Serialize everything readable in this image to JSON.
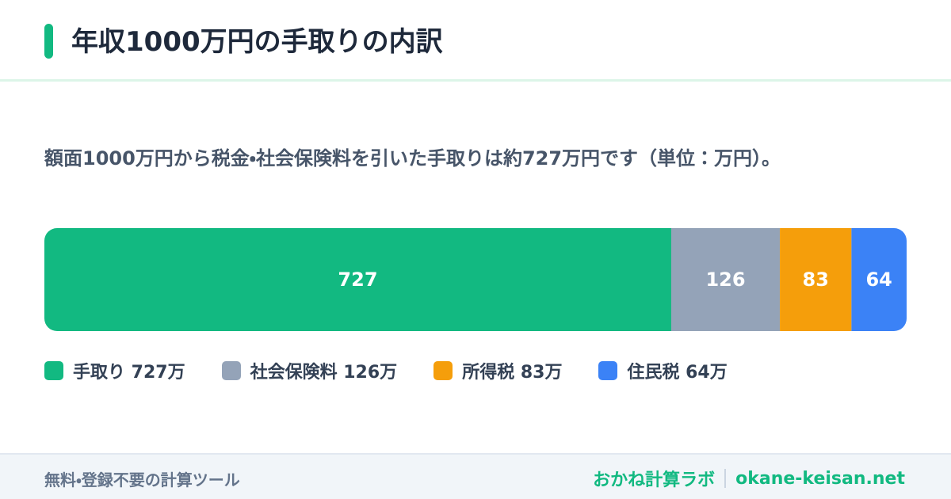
{
  "header": {
    "title": "年収1000万円の手取りの内訳"
  },
  "description": "額面1000万円から税金・社会保険料を引いた手取りは約727万円です（単位：万円）。",
  "chart_data": {
    "type": "stacked_bar_horizontal",
    "series": [
      {
        "name": "手取り 727万",
        "color": "#12b981",
        "values": [
          727
        ]
      },
      {
        "name": "社会保険料 126万",
        "color": "#94a3b8",
        "values": [
          126
        ]
      },
      {
        "name": "所得税 83万",
        "color": "#f59e0b",
        "values": [
          83
        ]
      },
      {
        "name": "住民税 64万",
        "color": "#3b82f6",
        "values": [
          64
        ]
      }
    ]
  },
  "footer": {
    "left": "無料・登録不要の計算ツール",
    "brand": "おかね計算ラボ",
    "site": "okane-keisan.net"
  }
}
